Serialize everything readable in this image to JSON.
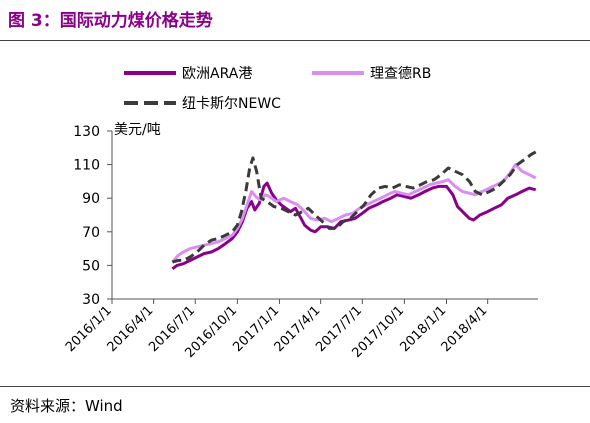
{
  "figure": {
    "title": "图 3：国际动力煤价格走势",
    "source": "资料来源：Wind"
  },
  "chart_data": {
    "type": "line",
    "title": "",
    "xlabel": "",
    "ylabel": "美元/吨",
    "ylim": [
      30,
      130
    ],
    "yticks": [
      30,
      50,
      70,
      90,
      110,
      130
    ],
    "xlim": [
      "2016-01-01",
      "2018-07-20"
    ],
    "xticks": [
      {
        "date": "2016-01-01",
        "label": "2016/1/1"
      },
      {
        "date": "2016-04-01",
        "label": "2016/4/1"
      },
      {
        "date": "2016-07-01",
        "label": "2016/7/1"
      },
      {
        "date": "2016-10-01",
        "label": "2016/10/1"
      },
      {
        "date": "2017-01-01",
        "label": "2017/1/1"
      },
      {
        "date": "2017-04-01",
        "label": "2017/4/1"
      },
      {
        "date": "2017-07-01",
        "label": "2017/7/1"
      },
      {
        "date": "2017-10-01",
        "label": "2017/10/1"
      },
      {
        "date": "2018-01-01",
        "label": "2018/1/1"
      },
      {
        "date": "2018-04-01",
        "label": "2018/4/1"
      }
    ],
    "grid": false,
    "legend_position": "top",
    "series": [
      {
        "name": "欧洲ARA港",
        "color": "#8B008B",
        "style": "solid",
        "width": 3,
        "points": [
          [
            "2016-05-12",
            48
          ],
          [
            "2016-05-22",
            50
          ],
          [
            "2016-06-05",
            51
          ],
          [
            "2016-06-20",
            53
          ],
          [
            "2016-07-05",
            55
          ],
          [
            "2016-07-20",
            57
          ],
          [
            "2016-08-05",
            58
          ],
          [
            "2016-08-20",
            60
          ],
          [
            "2016-09-05",
            63
          ],
          [
            "2016-09-20",
            66
          ],
          [
            "2016-10-01",
            70
          ],
          [
            "2016-10-12",
            76
          ],
          [
            "2016-10-22",
            84
          ],
          [
            "2016-11-01",
            88
          ],
          [
            "2016-11-08",
            83
          ],
          [
            "2016-11-18",
            87
          ],
          [
            "2016-11-28",
            97
          ],
          [
            "2016-12-05",
            99
          ],
          [
            "2016-12-15",
            93
          ],
          [
            "2016-12-25",
            89
          ],
          [
            "2017-01-05",
            86
          ],
          [
            "2017-01-15",
            84
          ],
          [
            "2017-01-25",
            82
          ],
          [
            "2017-02-05",
            84
          ],
          [
            "2017-02-15",
            79
          ],
          [
            "2017-02-25",
            74
          ],
          [
            "2017-03-10",
            71
          ],
          [
            "2017-03-20",
            70
          ],
          [
            "2017-04-01",
            73
          ],
          [
            "2017-04-15",
            73
          ],
          [
            "2017-05-01",
            72
          ],
          [
            "2017-05-15",
            76
          ],
          [
            "2017-06-01",
            77
          ],
          [
            "2017-06-15",
            78
          ],
          [
            "2017-07-01",
            81
          ],
          [
            "2017-07-15",
            84
          ],
          [
            "2017-08-01",
            86
          ],
          [
            "2017-08-15",
            88
          ],
          [
            "2017-09-01",
            90
          ],
          [
            "2017-09-15",
            92
          ],
          [
            "2017-10-01",
            91
          ],
          [
            "2017-10-15",
            90
          ],
          [
            "2017-11-01",
            92
          ],
          [
            "2017-11-15",
            94
          ],
          [
            "2017-12-01",
            96
          ],
          [
            "2017-12-15",
            97
          ],
          [
            "2018-01-01",
            97
          ],
          [
            "2018-01-15",
            92
          ],
          [
            "2018-01-25",
            85
          ],
          [
            "2018-02-05",
            82
          ],
          [
            "2018-02-20",
            78
          ],
          [
            "2018-03-01",
            77
          ],
          [
            "2018-03-15",
            80
          ],
          [
            "2018-04-01",
            82
          ],
          [
            "2018-04-15",
            84
          ],
          [
            "2018-05-01",
            86
          ],
          [
            "2018-05-15",
            90
          ],
          [
            "2018-06-01",
            92
          ],
          [
            "2018-06-15",
            94
          ],
          [
            "2018-07-01",
            96
          ],
          [
            "2018-07-15",
            95
          ]
        ]
      },
      {
        "name": "理查德RB",
        "color": "#DA8FF0",
        "style": "solid",
        "width": 3,
        "points": [
          [
            "2016-05-12",
            52
          ],
          [
            "2016-05-25",
            56
          ],
          [
            "2016-06-05",
            58
          ],
          [
            "2016-06-20",
            60
          ],
          [
            "2016-07-05",
            61
          ],
          [
            "2016-07-20",
            62
          ],
          [
            "2016-08-05",
            63
          ],
          [
            "2016-08-20",
            64
          ],
          [
            "2016-09-05",
            66
          ],
          [
            "2016-09-20",
            68
          ],
          [
            "2016-10-01",
            72
          ],
          [
            "2016-10-12",
            78
          ],
          [
            "2016-10-22",
            86
          ],
          [
            "2016-11-01",
            94
          ],
          [
            "2016-11-10",
            91
          ],
          [
            "2016-11-20",
            89
          ],
          [
            "2016-12-01",
            92
          ],
          [
            "2016-12-10",
            91
          ],
          [
            "2016-12-25",
            88
          ],
          [
            "2017-01-10",
            90
          ],
          [
            "2017-01-25",
            88
          ],
          [
            "2017-02-10",
            86
          ],
          [
            "2017-02-25",
            82
          ],
          [
            "2017-03-10",
            78
          ],
          [
            "2017-03-25",
            77
          ],
          [
            "2017-04-10",
            78
          ],
          [
            "2017-04-25",
            76
          ],
          [
            "2017-05-10",
            78
          ],
          [
            "2017-05-25",
            80
          ],
          [
            "2017-06-10",
            81
          ],
          [
            "2017-06-25",
            84
          ],
          [
            "2017-07-10",
            86
          ],
          [
            "2017-07-25",
            88
          ],
          [
            "2017-08-10",
            90
          ],
          [
            "2017-08-25",
            92
          ],
          [
            "2017-09-10",
            94
          ],
          [
            "2017-09-25",
            93
          ],
          [
            "2017-10-10",
            92
          ],
          [
            "2017-10-25",
            94
          ],
          [
            "2017-11-10",
            96
          ],
          [
            "2017-11-25",
            98
          ],
          [
            "2017-12-10",
            99
          ],
          [
            "2017-12-25",
            100
          ],
          [
            "2018-01-05",
            101
          ],
          [
            "2018-01-20",
            97
          ],
          [
            "2018-02-05",
            94
          ],
          [
            "2018-02-20",
            93
          ],
          [
            "2018-03-05",
            92
          ],
          [
            "2018-03-20",
            94
          ],
          [
            "2018-04-05",
            96
          ],
          [
            "2018-04-20",
            98
          ],
          [
            "2018-05-05",
            100
          ],
          [
            "2018-05-20",
            105
          ],
          [
            "2018-06-01",
            110
          ],
          [
            "2018-06-15",
            106
          ],
          [
            "2018-07-01",
            104
          ],
          [
            "2018-07-15",
            102
          ]
        ]
      },
      {
        "name": "纽卡斯尔NEWC",
        "color": "#3A3A3A",
        "style": "dashed",
        "width": 3,
        "points": [
          [
            "2016-05-12",
            52
          ],
          [
            "2016-05-25",
            53
          ],
          [
            "2016-06-05",
            53
          ],
          [
            "2016-06-20",
            55
          ],
          [
            "2016-07-05",
            58
          ],
          [
            "2016-07-20",
            62
          ],
          [
            "2016-08-05",
            65
          ],
          [
            "2016-08-20",
            66
          ],
          [
            "2016-09-05",
            68
          ],
          [
            "2016-09-20",
            70
          ],
          [
            "2016-10-01",
            74
          ],
          [
            "2016-10-10",
            82
          ],
          [
            "2016-10-20",
            95
          ],
          [
            "2016-10-28",
            108
          ],
          [
            "2016-11-04",
            114
          ],
          [
            "2016-11-12",
            106
          ],
          [
            "2016-11-22",
            90
          ],
          [
            "2016-12-05",
            88
          ],
          [
            "2016-12-20",
            85
          ],
          [
            "2017-01-05",
            84
          ],
          [
            "2017-01-20",
            82
          ],
          [
            "2017-02-05",
            80
          ],
          [
            "2017-02-20",
            82
          ],
          [
            "2017-03-05",
            84
          ],
          [
            "2017-03-20",
            80
          ],
          [
            "2017-04-05",
            76
          ],
          [
            "2017-04-20",
            72
          ],
          [
            "2017-05-05",
            72
          ],
          [
            "2017-05-20",
            76
          ],
          [
            "2017-06-05",
            78
          ],
          [
            "2017-06-20",
            82
          ],
          [
            "2017-07-05",
            86
          ],
          [
            "2017-07-20",
            92
          ],
          [
            "2017-08-05",
            96
          ],
          [
            "2017-08-20",
            97
          ],
          [
            "2017-09-05",
            96
          ],
          [
            "2017-09-20",
            98
          ],
          [
            "2017-10-05",
            97
          ],
          [
            "2017-10-20",
            96
          ],
          [
            "2017-11-05",
            98
          ],
          [
            "2017-11-20",
            100
          ],
          [
            "2017-12-05",
            101
          ],
          [
            "2017-12-20",
            104
          ],
          [
            "2018-01-05",
            108
          ],
          [
            "2018-01-20",
            106
          ],
          [
            "2018-02-05",
            104
          ],
          [
            "2018-02-20",
            100
          ],
          [
            "2018-03-05",
            94
          ],
          [
            "2018-03-20",
            92
          ],
          [
            "2018-04-05",
            94
          ],
          [
            "2018-04-20",
            96
          ],
          [
            "2018-05-05",
            100
          ],
          [
            "2018-05-20",
            104
          ],
          [
            "2018-06-05",
            110
          ],
          [
            "2018-06-20",
            113
          ],
          [
            "2018-07-05",
            116
          ],
          [
            "2018-07-18",
            118
          ]
        ]
      }
    ]
  }
}
